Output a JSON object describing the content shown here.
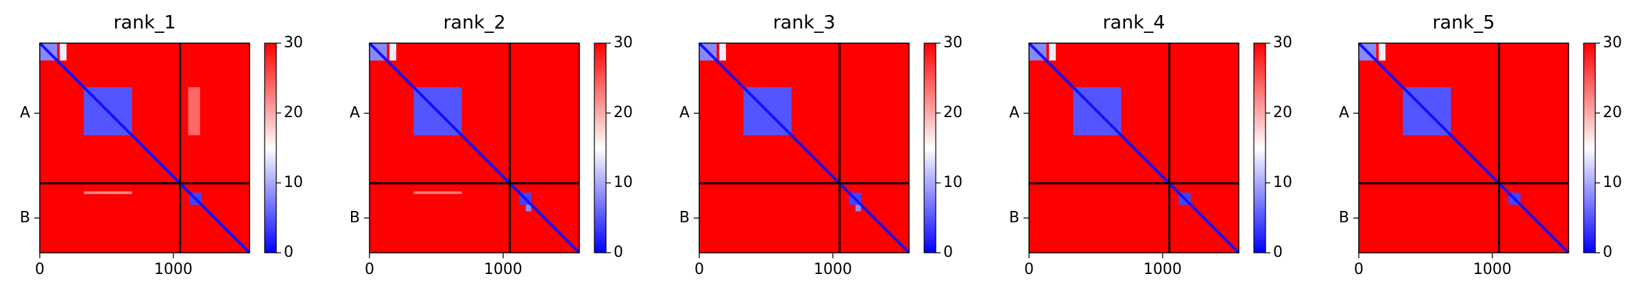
{
  "chart_data": [
    {
      "type": "heatmap",
      "title": "rank_1",
      "xlim": [
        0,
        1570
      ],
      "ylim": [
        1570,
        0
      ],
      "xticks": [
        0,
        1000
      ],
      "clim": [
        0,
        30
      ],
      "cticks": [
        0,
        10,
        20,
        30
      ],
      "colormap": [
        "#0000ff",
        "#ffffff",
        "#ff0000"
      ],
      "chains": [
        {
          "label": "A",
          "start": 0,
          "end": 1050
        },
        {
          "label": "B",
          "start": 1050,
          "end": 1570
        }
      ],
      "regions": [
        {
          "x": [
            0,
            1570
          ],
          "y": [
            0,
            1570
          ],
          "value": 30
        },
        {
          "x": [
            0,
            130
          ],
          "y": [
            0,
            130
          ],
          "value": 8
        },
        {
          "x": [
            150,
            200
          ],
          "y": [
            0,
            130
          ],
          "value": 14
        },
        {
          "x": [
            330,
            690
          ],
          "y": [
            330,
            690
          ],
          "value": 5
        },
        {
          "x": [
            330,
            690
          ],
          "y": [
            1110,
            1130
          ],
          "value": 22
        },
        {
          "x": [
            1110,
            1200
          ],
          "y": [
            330,
            690
          ],
          "value": 24
        },
        {
          "x": [
            1120,
            1210
          ],
          "y": [
            1120,
            1210
          ],
          "value": 4
        }
      ],
      "diagonal": 1
    },
    {
      "type": "heatmap",
      "title": "rank_2",
      "xlim": [
        0,
        1570
      ],
      "ylim": [
        1570,
        0
      ],
      "xticks": [
        0,
        1000
      ],
      "clim": [
        0,
        30
      ],
      "cticks": [
        0,
        10,
        20,
        30
      ],
      "colormap": [
        "#0000ff",
        "#ffffff",
        "#ff0000"
      ],
      "chains": [
        {
          "label": "A",
          "start": 0,
          "end": 1050
        },
        {
          "label": "B",
          "start": 1050,
          "end": 1570
        }
      ],
      "regions": [
        {
          "x": [
            0,
            1570
          ],
          "y": [
            0,
            1570
          ],
          "value": 30
        },
        {
          "x": [
            0,
            130
          ],
          "y": [
            0,
            130
          ],
          "value": 8
        },
        {
          "x": [
            150,
            200
          ],
          "y": [
            0,
            130
          ],
          "value": 14
        },
        {
          "x": [
            330,
            690
          ],
          "y": [
            330,
            690
          ],
          "value": 5
        },
        {
          "x": [
            330,
            690
          ],
          "y": [
            1110,
            1130
          ],
          "value": 23
        },
        {
          "x": [
            1120,
            1210
          ],
          "y": [
            1120,
            1210
          ],
          "value": 4
        },
        {
          "x": [
            1170,
            1210
          ],
          "y": [
            1210,
            1260
          ],
          "value": 8
        }
      ],
      "diagonal": 1
    },
    {
      "type": "heatmap",
      "title": "rank_3",
      "xlim": [
        0,
        1570
      ],
      "ylim": [
        1570,
        0
      ],
      "xticks": [
        0,
        1000
      ],
      "clim": [
        0,
        30
      ],
      "cticks": [
        0,
        10,
        20,
        30
      ],
      "colormap": [
        "#0000ff",
        "#ffffff",
        "#ff0000"
      ],
      "chains": [
        {
          "label": "A",
          "start": 0,
          "end": 1050
        },
        {
          "label": "B",
          "start": 1050,
          "end": 1570
        }
      ],
      "regions": [
        {
          "x": [
            0,
            1570
          ],
          "y": [
            0,
            1570
          ],
          "value": 30
        },
        {
          "x": [
            0,
            130
          ],
          "y": [
            0,
            130
          ],
          "value": 8
        },
        {
          "x": [
            150,
            200
          ],
          "y": [
            0,
            130
          ],
          "value": 14
        },
        {
          "x": [
            330,
            690
          ],
          "y": [
            330,
            690
          ],
          "value": 5
        },
        {
          "x": [
            1120,
            1210
          ],
          "y": [
            1120,
            1210
          ],
          "value": 4
        },
        {
          "x": [
            1170,
            1210
          ],
          "y": [
            1210,
            1260
          ],
          "value": 8
        }
      ],
      "diagonal": 1
    },
    {
      "type": "heatmap",
      "title": "rank_4",
      "xlim": [
        0,
        1570
      ],
      "ylim": [
        1570,
        0
      ],
      "xticks": [
        0,
        1000
      ],
      "clim": [
        0,
        30
      ],
      "cticks": [
        0,
        10,
        20,
        30
      ],
      "colormap": [
        "#0000ff",
        "#ffffff",
        "#ff0000"
      ],
      "chains": [
        {
          "label": "A",
          "start": 0,
          "end": 1050
        },
        {
          "label": "B",
          "start": 1050,
          "end": 1570
        }
      ],
      "regions": [
        {
          "x": [
            0,
            1570
          ],
          "y": [
            0,
            1570
          ],
          "value": 30
        },
        {
          "x": [
            0,
            130
          ],
          "y": [
            0,
            130
          ],
          "value": 8
        },
        {
          "x": [
            150,
            200
          ],
          "y": [
            0,
            130
          ],
          "value": 14
        },
        {
          "x": [
            330,
            690
          ],
          "y": [
            330,
            690
          ],
          "value": 5
        },
        {
          "x": [
            1120,
            1210
          ],
          "y": [
            1120,
            1210
          ],
          "value": 4
        }
      ],
      "diagonal": 1
    },
    {
      "type": "heatmap",
      "title": "rank_5",
      "xlim": [
        0,
        1570
      ],
      "ylim": [
        1570,
        0
      ],
      "xticks": [
        0,
        1000
      ],
      "clim": [
        0,
        30
      ],
      "cticks": [
        0,
        10,
        20,
        30
      ],
      "colormap": [
        "#0000ff",
        "#ffffff",
        "#ff0000"
      ],
      "chains": [
        {
          "label": "A",
          "start": 0,
          "end": 1050
        },
        {
          "label": "B",
          "start": 1050,
          "end": 1570
        }
      ],
      "regions": [
        {
          "x": [
            0,
            1570
          ],
          "y": [
            0,
            1570
          ],
          "value": 30
        },
        {
          "x": [
            0,
            130
          ],
          "y": [
            0,
            130
          ],
          "value": 8
        },
        {
          "x": [
            150,
            200
          ],
          "y": [
            0,
            130
          ],
          "value": 14
        },
        {
          "x": [
            330,
            690
          ],
          "y": [
            330,
            690
          ],
          "value": 5
        },
        {
          "x": [
            1120,
            1210
          ],
          "y": [
            1120,
            1210
          ],
          "value": 4
        }
      ],
      "diagonal": 1
    }
  ]
}
